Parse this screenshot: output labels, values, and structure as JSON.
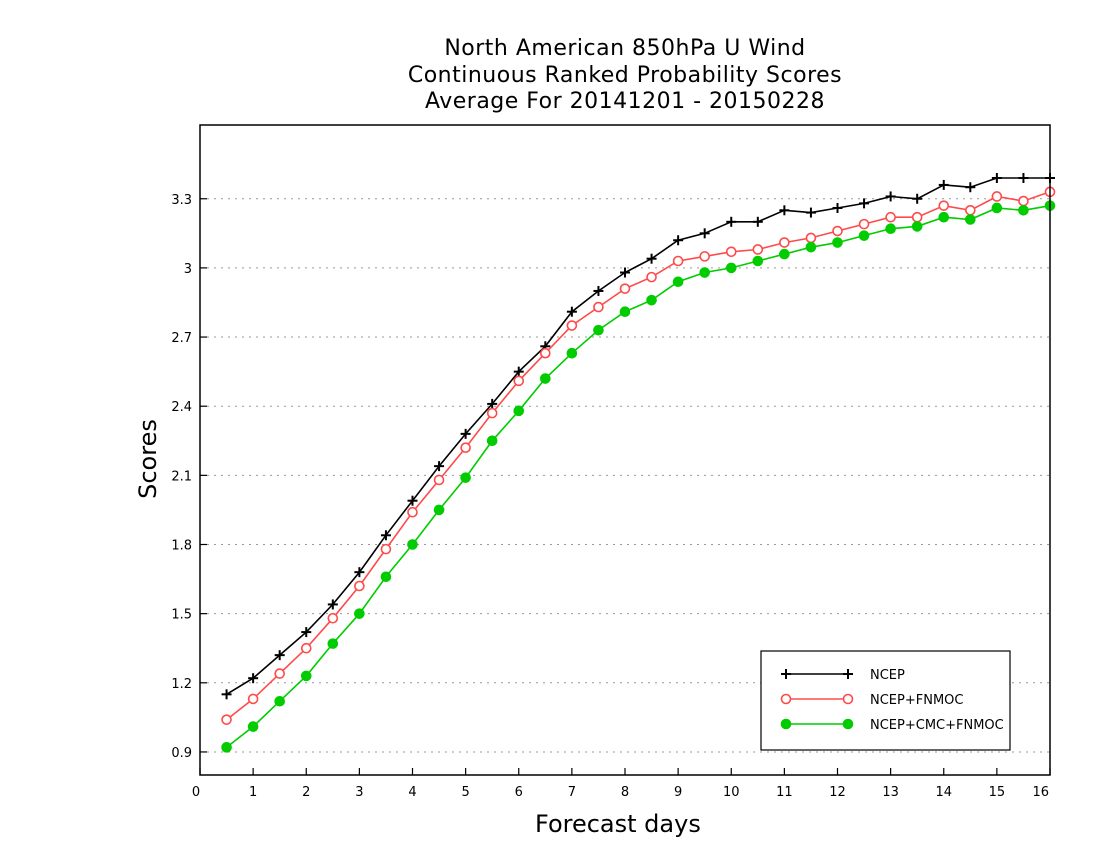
{
  "chart_data": {
    "type": "line",
    "title_lines": [
      "North American 850hPa U Wind",
      "Continuous Ranked Probability Scores",
      "Average For 20141201 - 20150228"
    ],
    "xlabel": "Forecast days",
    "ylabel": "Scores",
    "xlim": [
      0,
      16
    ],
    "ylim": [
      0.8,
      3.62
    ],
    "xticks": [
      0,
      1,
      2,
      3,
      4,
      5,
      6,
      7,
      8,
      9,
      10,
      11,
      12,
      13,
      14,
      15,
      16
    ],
    "yticks": [
      0.9,
      1.2,
      1.5,
      1.8,
      2.1,
      2.4,
      2.7,
      3,
      3.3
    ],
    "ytick_labels": [
      "0.9",
      "1.2",
      "1.5",
      "1.8",
      "2.1",
      "2.4",
      "2.7",
      "3",
      "3.3"
    ],
    "grid": "horizontal dotted",
    "legend_position": "bottom-right",
    "x": [
      0.5,
      1.0,
      1.5,
      2.0,
      2.5,
      3.0,
      3.5,
      4.0,
      4.5,
      5.0,
      5.5,
      6.0,
      6.5,
      7.0,
      7.5,
      8.0,
      8.5,
      9.0,
      9.5,
      10.0,
      10.5,
      11.0,
      11.5,
      12.0,
      12.5,
      13.0,
      13.5,
      14.0,
      14.5,
      15.0,
      15.5,
      16.0
    ],
    "series": [
      {
        "name": "NCEP",
        "color": "#000000",
        "marker": "plus",
        "values": [
          1.15,
          1.22,
          1.32,
          1.42,
          1.54,
          1.68,
          1.84,
          1.99,
          2.14,
          2.28,
          2.41,
          2.55,
          2.66,
          2.81,
          2.9,
          2.98,
          3.04,
          3.12,
          3.15,
          3.2,
          3.2,
          3.25,
          3.24,
          3.26,
          3.28,
          3.31,
          3.3,
          3.36,
          3.35,
          3.39,
          3.39,
          3.39
        ]
      },
      {
        "name": "NCEP+FNMOC",
        "color": "#ff4a4a",
        "marker": "open-circle",
        "values": [
          1.04,
          1.13,
          1.24,
          1.35,
          1.48,
          1.62,
          1.78,
          1.94,
          2.08,
          2.22,
          2.37,
          2.51,
          2.63,
          2.75,
          2.83,
          2.91,
          2.96,
          3.03,
          3.05,
          3.07,
          3.08,
          3.11,
          3.13,
          3.16,
          3.19,
          3.22,
          3.22,
          3.27,
          3.25,
          3.31,
          3.29,
          3.33
        ]
      },
      {
        "name": "NCEP+CMC+FNMOC",
        "color": "#00cc00",
        "marker": "filled-circle",
        "values": [
          0.92,
          1.01,
          1.12,
          1.23,
          1.37,
          1.5,
          1.66,
          1.8,
          1.95,
          2.09,
          2.25,
          2.38,
          2.52,
          2.63,
          2.73,
          2.81,
          2.86,
          2.94,
          2.98,
          3.0,
          3.03,
          3.06,
          3.09,
          3.11,
          3.14,
          3.17,
          3.18,
          3.22,
          3.21,
          3.26,
          3.25,
          3.27
        ]
      }
    ]
  }
}
